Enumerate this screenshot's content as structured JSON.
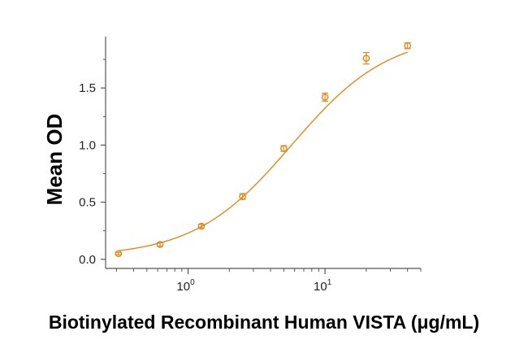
{
  "chart_data": {
    "type": "scatter",
    "xscale": "log",
    "xlim": [
      0.25,
      50
    ],
    "ylim": [
      -0.08,
      1.95
    ],
    "xlabel": "Biotinylated Recombinant Human VISTA (μg/mL)",
    "ylabel": "Mean OD",
    "grid": false,
    "x_ticks": [
      {
        "value": 1,
        "base": "10",
        "exp": "0"
      },
      {
        "value": 10,
        "base": "10",
        "exp": "1"
      }
    ],
    "y_ticks": [
      {
        "value": 0.0,
        "label": "0.0"
      },
      {
        "value": 0.5,
        "label": "0.5"
      },
      {
        "value": 1.0,
        "label": "1.0"
      },
      {
        "value": 1.5,
        "label": "1.5"
      }
    ],
    "series": [
      {
        "x": [
          0.31,
          0.625,
          1.25,
          2.5,
          5,
          10,
          20,
          40
        ],
        "y": [
          0.05,
          0.13,
          0.29,
          0.55,
          0.97,
          1.42,
          1.76,
          1.87
        ],
        "error": [
          0.01,
          0.015,
          0.015,
          0.025,
          0.025,
          0.035,
          0.05,
          0.025
        ],
        "fit": "4PL",
        "color": "#E0891B"
      }
    ],
    "fit_params": {
      "bottom": 0.02,
      "top": 1.98,
      "ec50": 5.7,
      "hill": 1.22
    }
  }
}
